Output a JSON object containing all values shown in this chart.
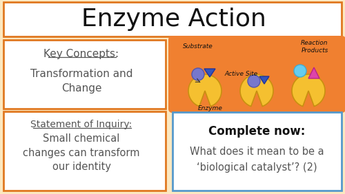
{
  "background_color": "#fce8c0",
  "title": "Enzyme Action",
  "title_fontsize": 26,
  "title_box_color": "#ffffff",
  "title_box_edgecolor": "#e07820",
  "key_concepts_title": "Key Concepts:",
  "key_concepts_body": "Transformation and\nChange",
  "statement_title": "Statement of Inquiry:",
  "statement_body": "Small chemical\nchanges can transform\nour identity",
  "complete_title": "Complete now:",
  "complete_body": "What does it mean to be a\n‘biological catalyst’? (2)",
  "left_box_edgecolor": "#e07820",
  "right_box_edgecolor": "#5599cc",
  "text_color": "#555555",
  "enzyme_orange": "#f08030",
  "enzyme_yellow": "#f5c030",
  "enzyme_yellow_edge": "#c89010"
}
